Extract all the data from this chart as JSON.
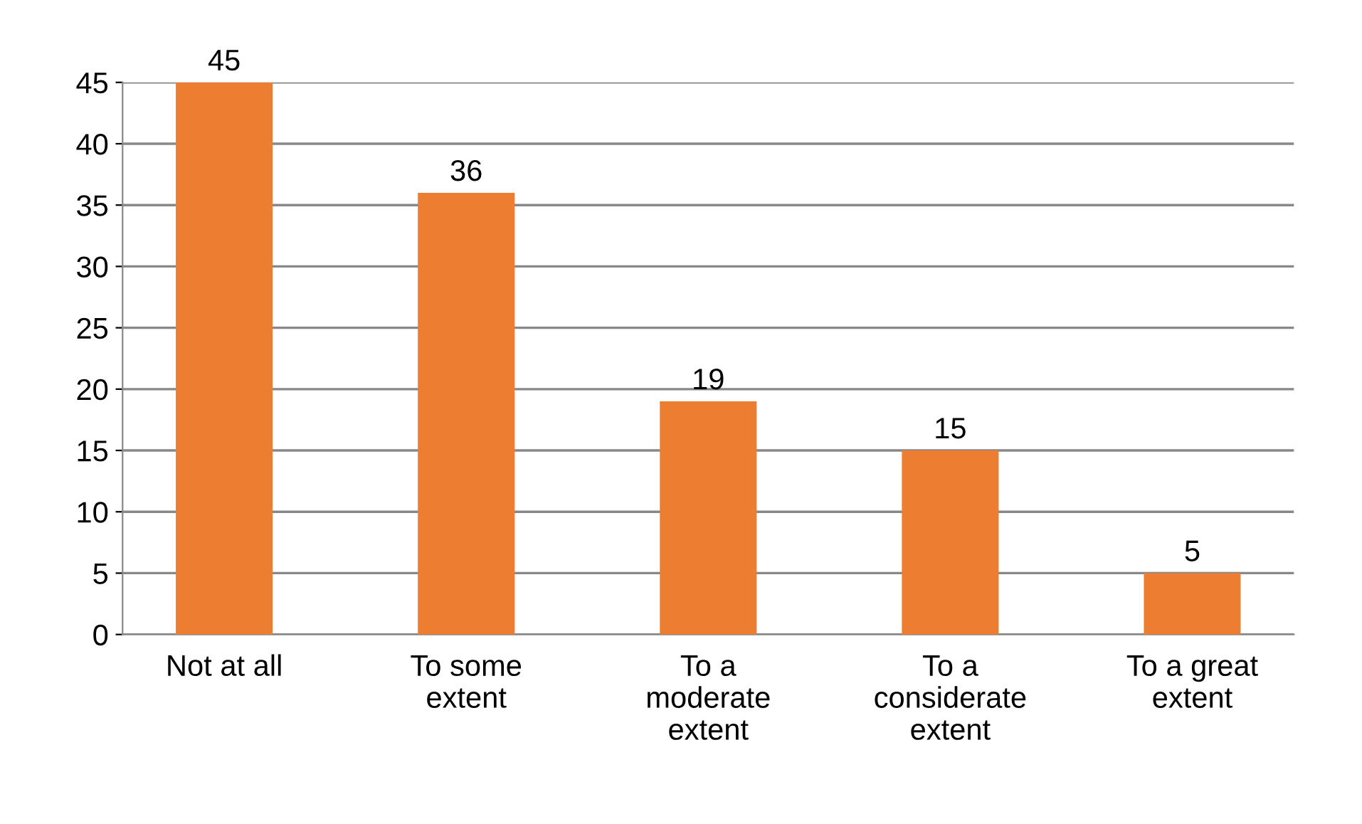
{
  "chart_data": {
    "type": "bar",
    "categories": [
      "Not at all",
      "To some\nextent",
      "To a\nmoderate\nextent",
      "To a\nconsiderate\nextent",
      "To a great\nextent"
    ],
    "values": [
      45,
      36,
      19,
      15,
      5
    ],
    "color": "#ed7d31",
    "ylim": [
      0,
      45
    ],
    "yticks": [
      0,
      5,
      10,
      15,
      20,
      25,
      30,
      35,
      40,
      45
    ],
    "grid": "y",
    "data_labels": true,
    "legend": false
  }
}
